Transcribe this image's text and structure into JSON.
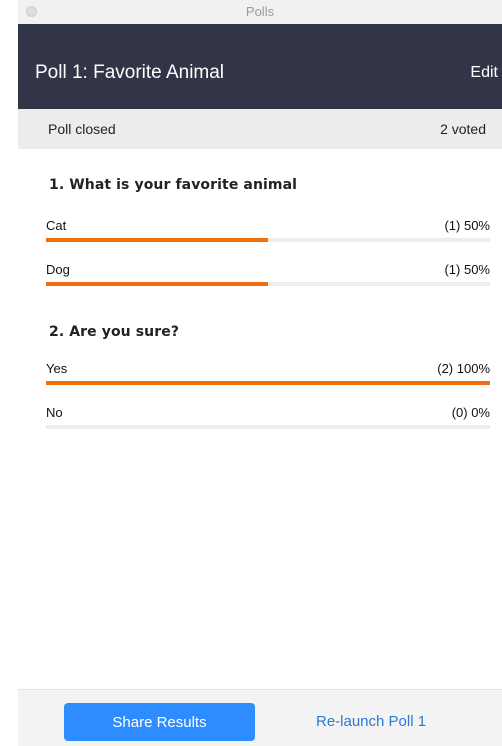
{
  "window": {
    "title": "Polls"
  },
  "header": {
    "title": "Poll 1: Favorite Animal",
    "edit_label": "Edit"
  },
  "status": {
    "state": "Poll closed",
    "votes": "2 voted"
  },
  "questions": [
    {
      "text": "1. What is your favorite animal",
      "options": [
        {
          "label": "Cat",
          "result": "(1) 50%",
          "percent": 50
        },
        {
          "label": "Dog",
          "result": "(1) 50%",
          "percent": 50
        }
      ]
    },
    {
      "text": "2. Are you sure?",
      "options": [
        {
          "label": "Yes",
          "result": "(2) 100%",
          "percent": 100
        },
        {
          "label": "No",
          "result": "(0) 0%",
          "percent": 0
        }
      ]
    }
  ],
  "footer": {
    "share_label": "Share Results",
    "relaunch_label": "Re-launch Poll 1"
  },
  "colors": {
    "accent": "#f26d10",
    "header_bg": "#323547",
    "primary_button": "#2d8cff",
    "link": "#2d79d6"
  }
}
